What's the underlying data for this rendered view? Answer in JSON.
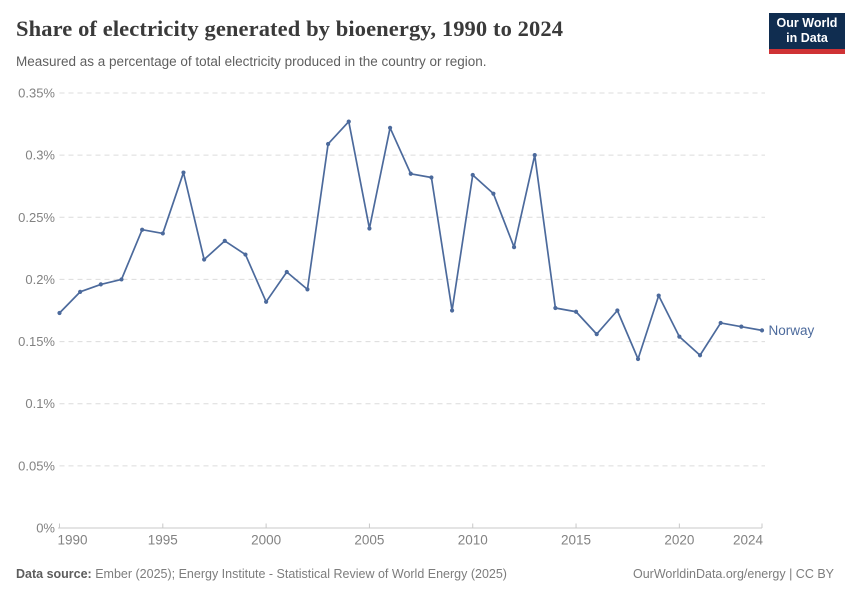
{
  "header": {
    "title": "Share of electricity generated by bioenergy, 1990 to 2024",
    "subtitle": "Measured as a percentage of total electricity produced in the country or region."
  },
  "logo": {
    "line1": "Our World",
    "line2": "in Data",
    "bg_color": "#102d50",
    "accent_color": "#cf3235"
  },
  "chart_data": {
    "type": "line",
    "title": "Share of electricity generated by bioenergy, 1990 to 2024",
    "xlabel": "",
    "ylabel": "",
    "xlim": [
      1990,
      2024
    ],
    "ylim": [
      0,
      0.35
    ],
    "grid": "horizontal-dashed",
    "legend_position": "end-of-line-label",
    "x": [
      1990,
      1991,
      1992,
      1993,
      1994,
      1995,
      1996,
      1997,
      1998,
      1999,
      2000,
      2001,
      2002,
      2003,
      2004,
      2005,
      2006,
      2007,
      2008,
      2009,
      2010,
      2011,
      2012,
      2013,
      2014,
      2015,
      2016,
      2017,
      2018,
      2019,
      2020,
      2021,
      2022,
      2023,
      2024
    ],
    "series": [
      {
        "name": "Norway",
        "color": "#4c6a9c",
        "values": [
          0.173,
          0.19,
          0.196,
          0.2,
          0.24,
          0.237,
          0.286,
          0.216,
          0.231,
          0.22,
          0.182,
          0.206,
          0.192,
          0.309,
          0.327,
          0.241,
          0.322,
          0.285,
          0.282,
          0.175,
          0.284,
          0.269,
          0.226,
          0.3,
          0.177,
          0.174,
          0.156,
          0.175,
          0.136,
          0.187,
          0.154,
          0.139,
          0.165,
          0.162,
          0.159
        ]
      }
    ],
    "x_ticks": [
      {
        "value": 1990,
        "label": "1990"
      },
      {
        "value": 1995,
        "label": "1995"
      },
      {
        "value": 2000,
        "label": "2000"
      },
      {
        "value": 2005,
        "label": "2005"
      },
      {
        "value": 2010,
        "label": "2010"
      },
      {
        "value": 2015,
        "label": "2015"
      },
      {
        "value": 2020,
        "label": "2020"
      },
      {
        "value": 2024,
        "label": "2024"
      }
    ],
    "y_ticks": [
      {
        "value": 0,
        "label": "0%"
      },
      {
        "value": 0.05,
        "label": "0.05%"
      },
      {
        "value": 0.1,
        "label": "0.1%"
      },
      {
        "value": 0.15,
        "label": "0.15%"
      },
      {
        "value": 0.2,
        "label": "0.2%"
      },
      {
        "value": 0.25,
        "label": "0.25%"
      },
      {
        "value": 0.3,
        "label": "0.3%"
      },
      {
        "value": 0.35,
        "label": "0.35%"
      }
    ],
    "colors": {
      "line": "#4c6a9c",
      "gridline": "#dcdcdc",
      "axis": "#c8c8c8",
      "tick_label": "#828282"
    }
  },
  "footer": {
    "source_label": "Data source:",
    "source_text": "Ember (2025); Energy Institute - Statistical Review of World Energy (2025)",
    "attribution": "OurWorldinData.org/energy | CC BY"
  }
}
